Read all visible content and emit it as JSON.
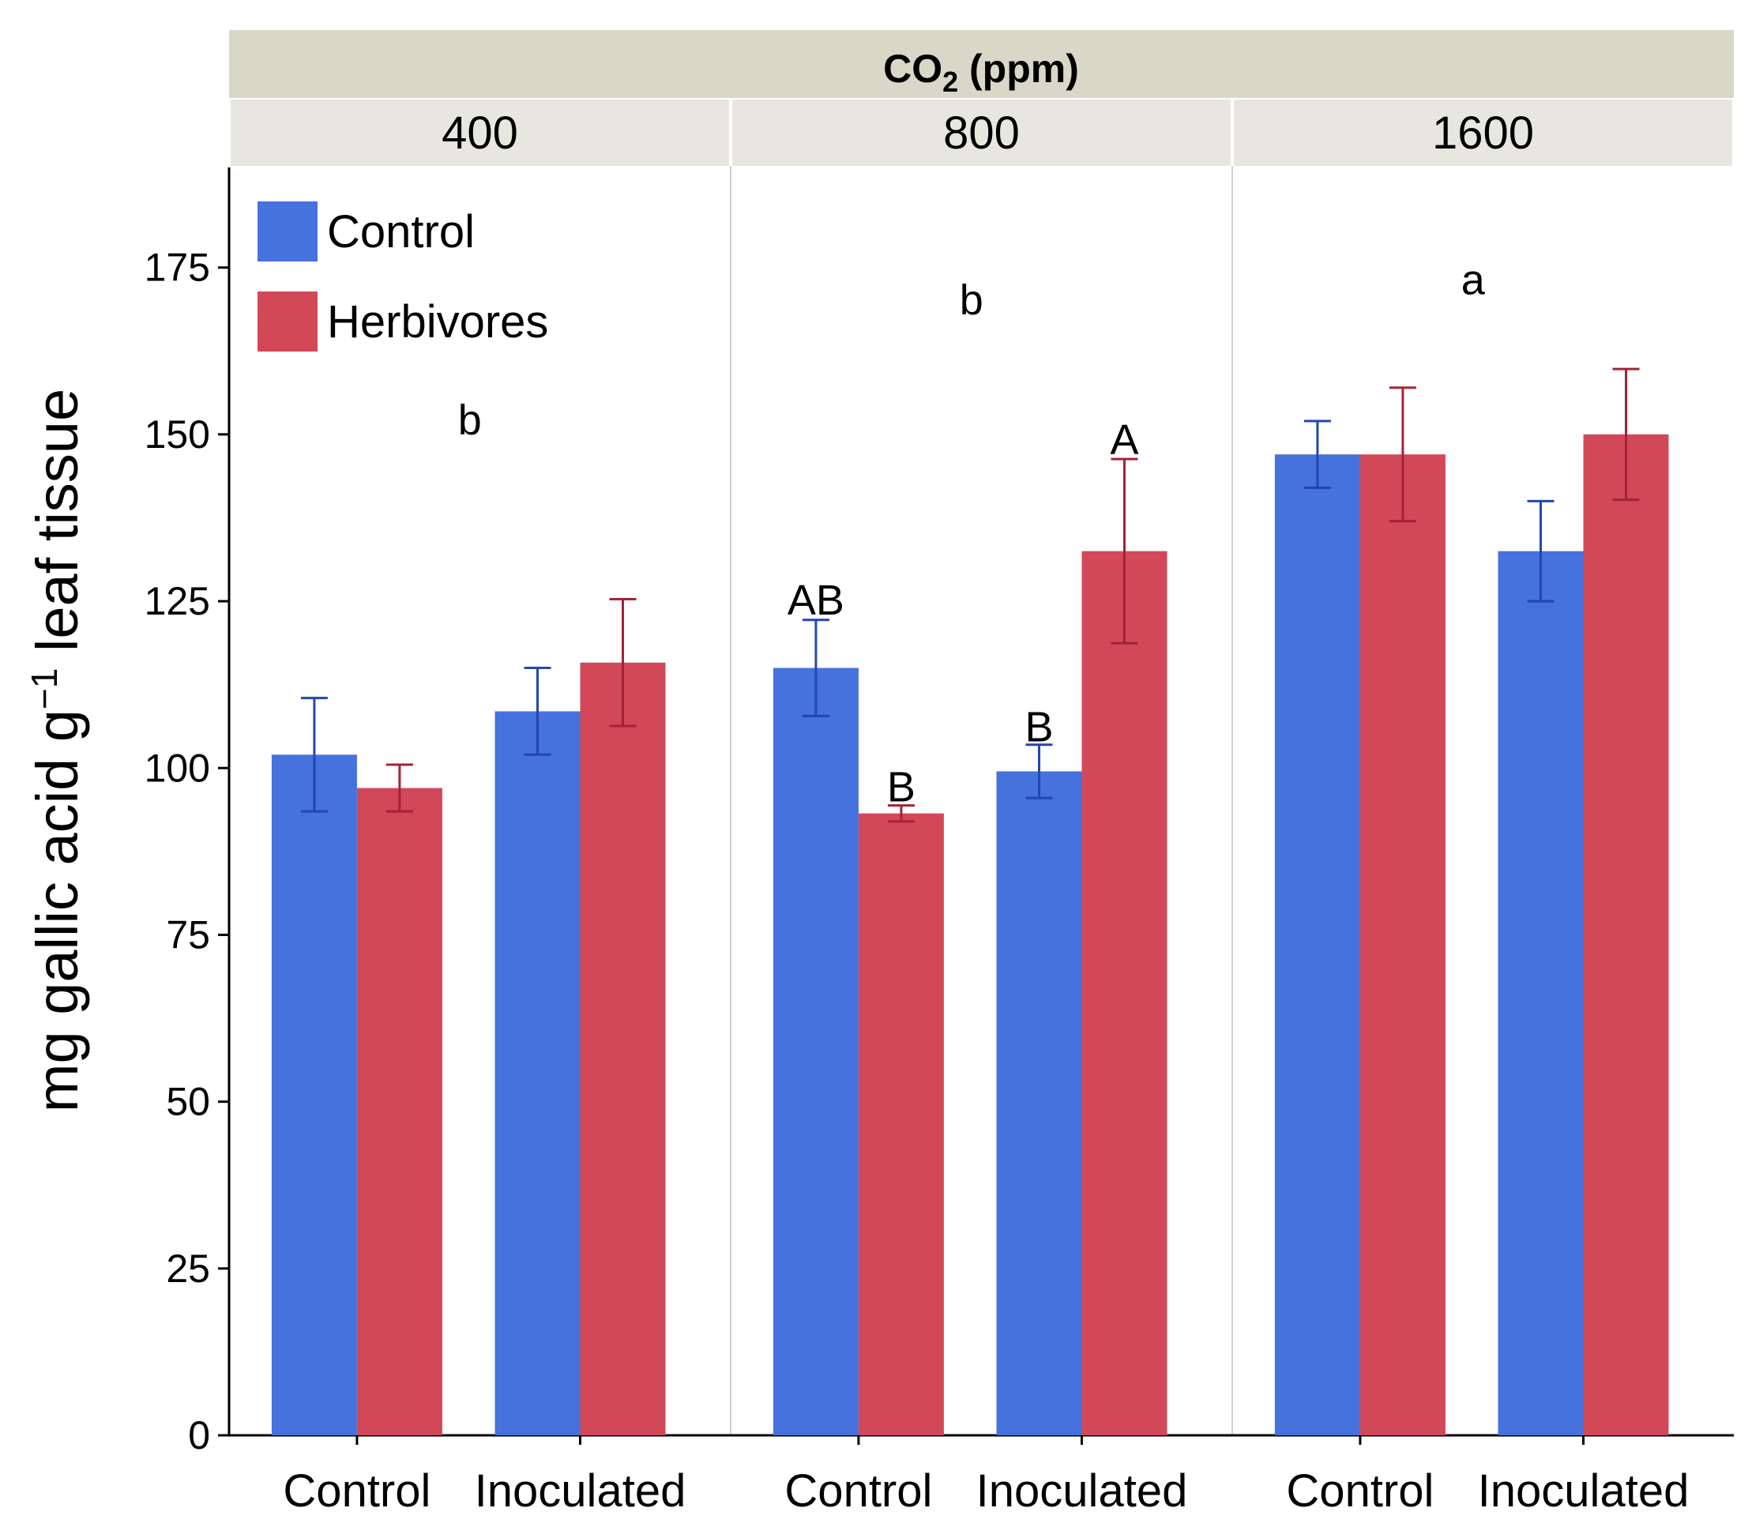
{
  "chart_data": {
    "type": "bar",
    "facet_title_main": "CO",
    "facet_title_sub": "2",
    "facet_title_unit": " (ppm)",
    "panels": [
      "400",
      "800",
      "1600"
    ],
    "categories": [
      "Control",
      "Inoculated"
    ],
    "ylabel_main": "mg gallic acid g",
    "ylabel_sup": "−1",
    "ylabel_tail": " leaf tissue",
    "ylim": [
      0,
      190
    ],
    "yticks": [
      "0",
      "25",
      "50",
      "75",
      "100",
      "125",
      "150",
      "175"
    ],
    "ytick_values": [
      0,
      25,
      50,
      75,
      100,
      125,
      150,
      175
    ],
    "legend_position": "top-left",
    "series": [
      {
        "name": "Control",
        "color": "#4572DC",
        "error_color": "#2446B0",
        "values": [
          [
            102,
            108.5
          ],
          [
            115,
            99.5
          ],
          [
            147,
            132.5
          ]
        ],
        "errors": [
          [
            8.5,
            6.5
          ],
          [
            7.2,
            4.0
          ],
          [
            5.0,
            7.5
          ]
        ]
      },
      {
        "name": "Herbivores",
        "color": "#D24858",
        "error_color": "#A32336",
        "values": [
          [
            97,
            115.8
          ],
          [
            93.2,
            132.5
          ],
          [
            147,
            150
          ]
        ],
        "errors": [
          [
            3.5,
            9.5
          ],
          [
            1.2,
            13.8
          ],
          [
            10.0,
            9.8
          ]
        ]
      }
    ],
    "annotations": [
      {
        "text": "b",
        "panel": 0,
        "y": 150
      },
      {
        "text": "b",
        "panel": 1,
        "y": 168
      },
      {
        "text": "a",
        "panel": 2,
        "y": 171
      },
      {
        "text": "AB",
        "panel": 1,
        "category": 0,
        "series": 0,
        "y": 123
      },
      {
        "text": "B",
        "panel": 1,
        "category": 0,
        "series": 1,
        "y": 95
      },
      {
        "text": "B",
        "panel": 1,
        "category": 1,
        "series": 0,
        "y": 104
      },
      {
        "text": "A",
        "panel": 1,
        "category": 1,
        "series": 1,
        "y": 147
      }
    ]
  }
}
